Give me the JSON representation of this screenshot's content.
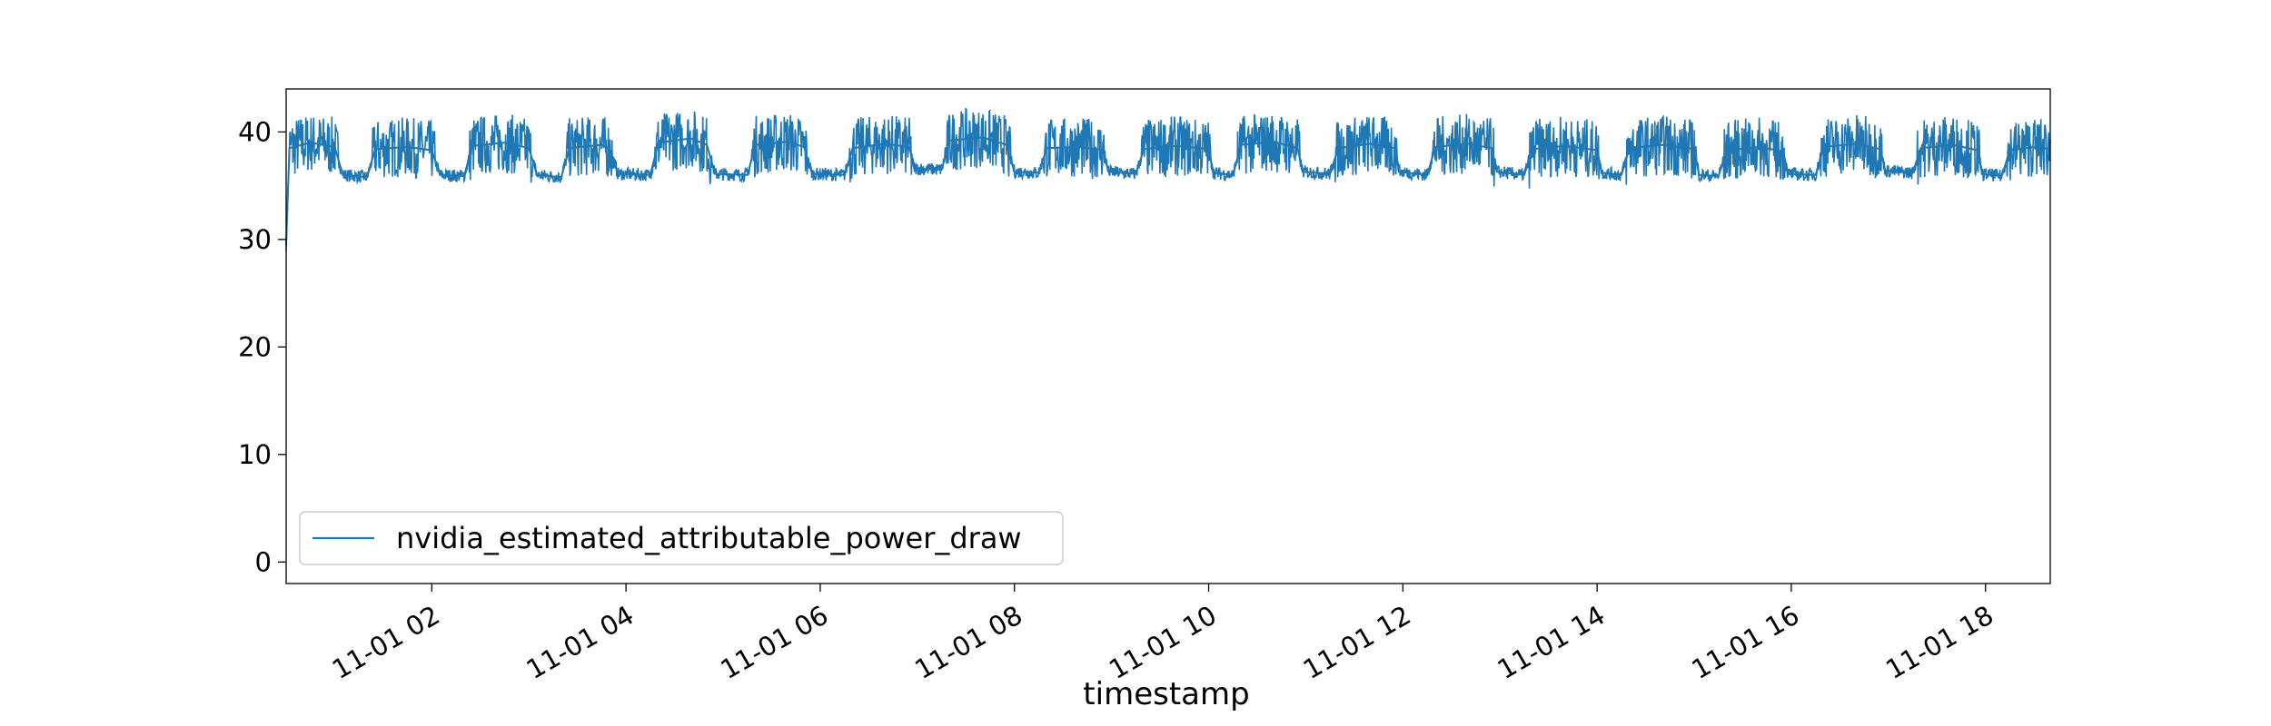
{
  "chart_data": {
    "type": "line",
    "title": "",
    "xlabel": "timestamp",
    "ylabel": "",
    "xlim": [
      "2023-11-01 00:30",
      "2023-11-01 18:40"
    ],
    "ylim": [
      -2,
      44
    ],
    "grid": false,
    "legend_position": "lower-left",
    "y_ticks": [
      0,
      10,
      20,
      30,
      40
    ],
    "x_ticks": [
      {
        "value": "2023-11-01 02:00",
        "label": "11-01 02"
      },
      {
        "value": "2023-11-01 04:00",
        "label": "11-01 04"
      },
      {
        "value": "2023-11-01 06:00",
        "label": "11-01 06"
      },
      {
        "value": "2023-11-01 08:00",
        "label": "11-01 08"
      },
      {
        "value": "2023-11-01 10:00",
        "label": "11-01 10"
      },
      {
        "value": "2023-11-01 12:00",
        "label": "11-01 12"
      },
      {
        "value": "2023-11-01 14:00",
        "label": "11-01 14"
      },
      {
        "value": "2023-11-01 16:00",
        "label": "11-01 16"
      },
      {
        "value": "2023-11-01 18:00",
        "label": "11-01 18"
      }
    ],
    "series": [
      {
        "name": "nvidia_estimated_attributable_power_draw",
        "color": "#1f77b4",
        "points": [
          [
            "2023-11-01 00:30",
            29.5
          ],
          [
            "2023-11-01 00:32",
            38.5
          ],
          [
            "2023-11-01 00:45",
            39.0
          ],
          [
            "2023-11-01 01:00",
            38.6
          ],
          [
            "2023-11-01 01:05",
            36.0
          ],
          [
            "2023-11-01 01:20",
            35.8
          ],
          [
            "2023-11-01 01:25",
            38.4
          ],
          [
            "2023-11-01 01:45",
            38.6
          ],
          [
            "2023-11-01 02:00",
            38.3
          ],
          [
            "2023-11-01 02:05",
            36.0
          ],
          [
            "2023-11-01 02:20",
            35.9
          ],
          [
            "2023-11-01 02:25",
            38.7
          ],
          [
            "2023-11-01 02:45",
            39.0
          ],
          [
            "2023-11-01 03:00",
            38.5
          ],
          [
            "2023-11-01 03:05",
            36.0
          ],
          [
            "2023-11-01 03:20",
            35.8
          ],
          [
            "2023-11-01 03:25",
            38.5
          ],
          [
            "2023-11-01 03:45",
            38.8
          ],
          [
            "2023-11-01 03:50",
            38.4
          ],
          [
            "2023-11-01 03:55",
            36.1
          ],
          [
            "2023-11-01 04:15",
            36.0
          ],
          [
            "2023-11-01 04:20",
            39.0
          ],
          [
            "2023-11-01 04:40",
            39.4
          ],
          [
            "2023-11-01 04:50",
            38.8
          ],
          [
            "2023-11-01 04:55",
            36.1
          ],
          [
            "2023-11-01 05:15",
            36.0
          ],
          [
            "2023-11-01 05:20",
            38.8
          ],
          [
            "2023-11-01 05:40",
            39.1
          ],
          [
            "2023-11-01 05:50",
            38.6
          ],
          [
            "2023-11-01 05:55",
            36.1
          ],
          [
            "2023-11-01 06:15",
            36.0
          ],
          [
            "2023-11-01 06:20",
            38.5
          ],
          [
            "2023-11-01 06:40",
            38.9
          ],
          [
            "2023-11-01 06:55",
            38.6
          ],
          [
            "2023-11-01 06:58",
            36.6
          ],
          [
            "2023-11-01 07:15",
            36.5
          ],
          [
            "2023-11-01 07:20",
            39.2
          ],
          [
            "2023-11-01 07:40",
            39.5
          ],
          [
            "2023-11-01 07:55",
            38.8
          ],
          [
            "2023-11-01 08:00",
            36.3
          ],
          [
            "2023-11-01 08:15",
            36.2
          ],
          [
            "2023-11-01 08:20",
            38.5
          ],
          [
            "2023-11-01 08:40",
            38.6
          ],
          [
            "2023-11-01 08:55",
            38.3
          ],
          [
            "2023-11-01 08:58",
            36.3
          ],
          [
            "2023-11-01 09:15",
            36.1
          ],
          [
            "2023-11-01 09:20",
            38.4
          ],
          [
            "2023-11-01 09:40",
            38.7
          ],
          [
            "2023-11-01 10:00",
            38.4
          ],
          [
            "2023-11-01 10:03",
            36.2
          ],
          [
            "2023-11-01 10:15",
            36.0
          ],
          [
            "2023-11-01 10:20",
            38.8
          ],
          [
            "2023-11-01 10:40",
            39.1
          ],
          [
            "2023-11-01 10:55",
            38.5
          ],
          [
            "2023-11-01 10:58",
            36.3
          ],
          [
            "2023-11-01 11:15",
            36.1
          ],
          [
            "2023-11-01 11:20",
            38.5
          ],
          [
            "2023-11-01 11:40",
            38.9
          ],
          [
            "2023-11-01 11:55",
            38.5
          ],
          [
            "2023-11-01 11:58",
            36.3
          ],
          [
            "2023-11-01 12:15",
            36.0
          ],
          [
            "2023-11-01 12:20",
            38.6
          ],
          [
            "2023-11-01 12:40",
            38.9
          ],
          [
            "2023-11-01 12:55",
            38.5
          ],
          [
            "2023-11-01 12:58",
            36.3
          ],
          [
            "2023-11-01 13:15",
            36.0
          ],
          [
            "2023-11-01 13:20",
            38.4
          ],
          [
            "2023-11-01 13:40",
            38.7
          ],
          [
            "2023-11-01 14:00",
            38.3
          ],
          [
            "2023-11-01 14:03",
            36.2
          ],
          [
            "2023-11-01 14:15",
            36.0
          ],
          [
            "2023-11-01 14:20",
            38.5
          ],
          [
            "2023-11-01 14:40",
            38.8
          ],
          [
            "2023-11-01 15:00",
            38.4
          ],
          [
            "2023-11-01 15:03",
            36.0
          ],
          [
            "2023-11-01 15:15",
            35.9
          ],
          [
            "2023-11-01 15:20",
            38.3
          ],
          [
            "2023-11-01 15:40",
            38.6
          ],
          [
            "2023-11-01 15:55",
            38.2
          ],
          [
            "2023-11-01 15:58",
            36.1
          ],
          [
            "2023-11-01 16:15",
            36.0
          ],
          [
            "2023-11-01 16:20",
            38.6
          ],
          [
            "2023-11-01 16:40",
            38.9
          ],
          [
            "2023-11-01 16:55",
            38.4
          ],
          [
            "2023-11-01 16:58",
            36.4
          ],
          [
            "2023-11-01 17:15",
            36.2
          ],
          [
            "2023-11-01 17:20",
            38.5
          ],
          [
            "2023-11-01 17:40",
            38.8
          ],
          [
            "2023-11-01 17:55",
            38.3
          ],
          [
            "2023-11-01 17:58",
            36.1
          ],
          [
            "2023-11-01 18:10",
            35.9
          ],
          [
            "2023-11-01 18:15",
            38.3
          ],
          [
            "2023-11-01 18:30",
            38.6
          ],
          [
            "2023-11-01 18:40",
            38.4
          ]
        ]
      }
    ]
  }
}
